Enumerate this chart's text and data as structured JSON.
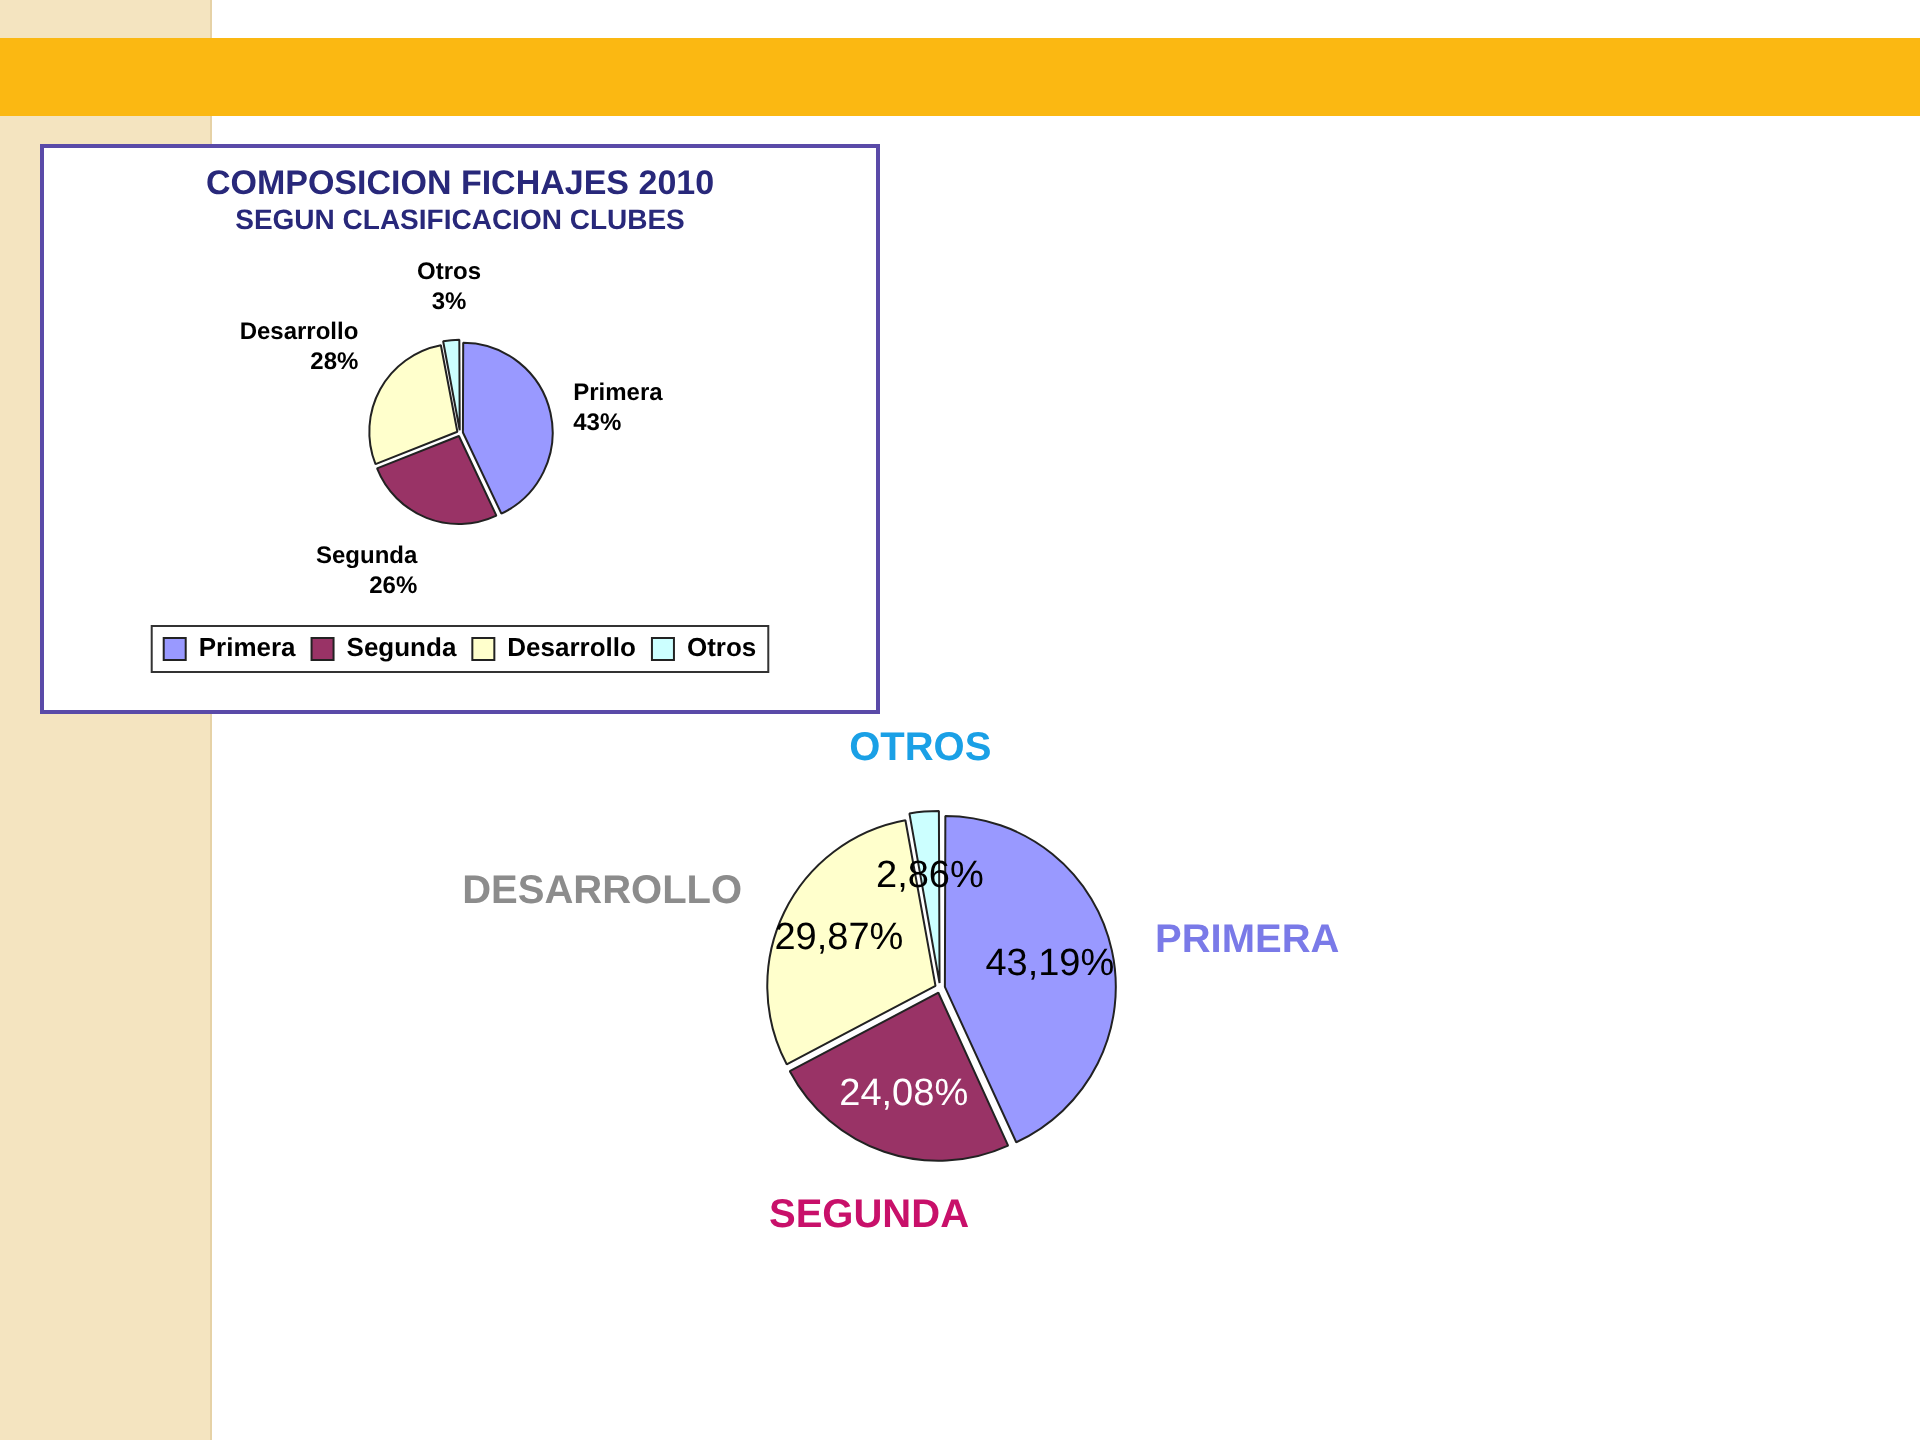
{
  "chart_data": [
    {
      "type": "pie",
      "title": "COMPOSICION FICHAJES 2010",
      "subtitle": "SEGUN CLASIFICACION CLUBES",
      "categories": [
        "Primera",
        "Segunda",
        "Desarrollo",
        "Otros"
      ],
      "values": [
        43,
        26,
        28,
        3
      ],
      "value_labels": [
        "43%",
        "26%",
        "28%",
        "3%"
      ],
      "colors": [
        "#9999ff",
        "#993366",
        "#ffffcc",
        "#ccffff"
      ],
      "legend": "bottom"
    },
    {
      "type": "pie",
      "categories": [
        "PRIMERA",
        "SEGUNDA",
        "DESARROLLO",
        "OTROS"
      ],
      "values": [
        43.19,
        24.08,
        29.87,
        2.86
      ],
      "value_labels": [
        "43,19%",
        "24,08%",
        "29,87%",
        "2,86%"
      ],
      "colors": [
        "#9999ff",
        "#993366",
        "#ffffcc",
        "#ccffff"
      ],
      "legend": false
    }
  ]
}
